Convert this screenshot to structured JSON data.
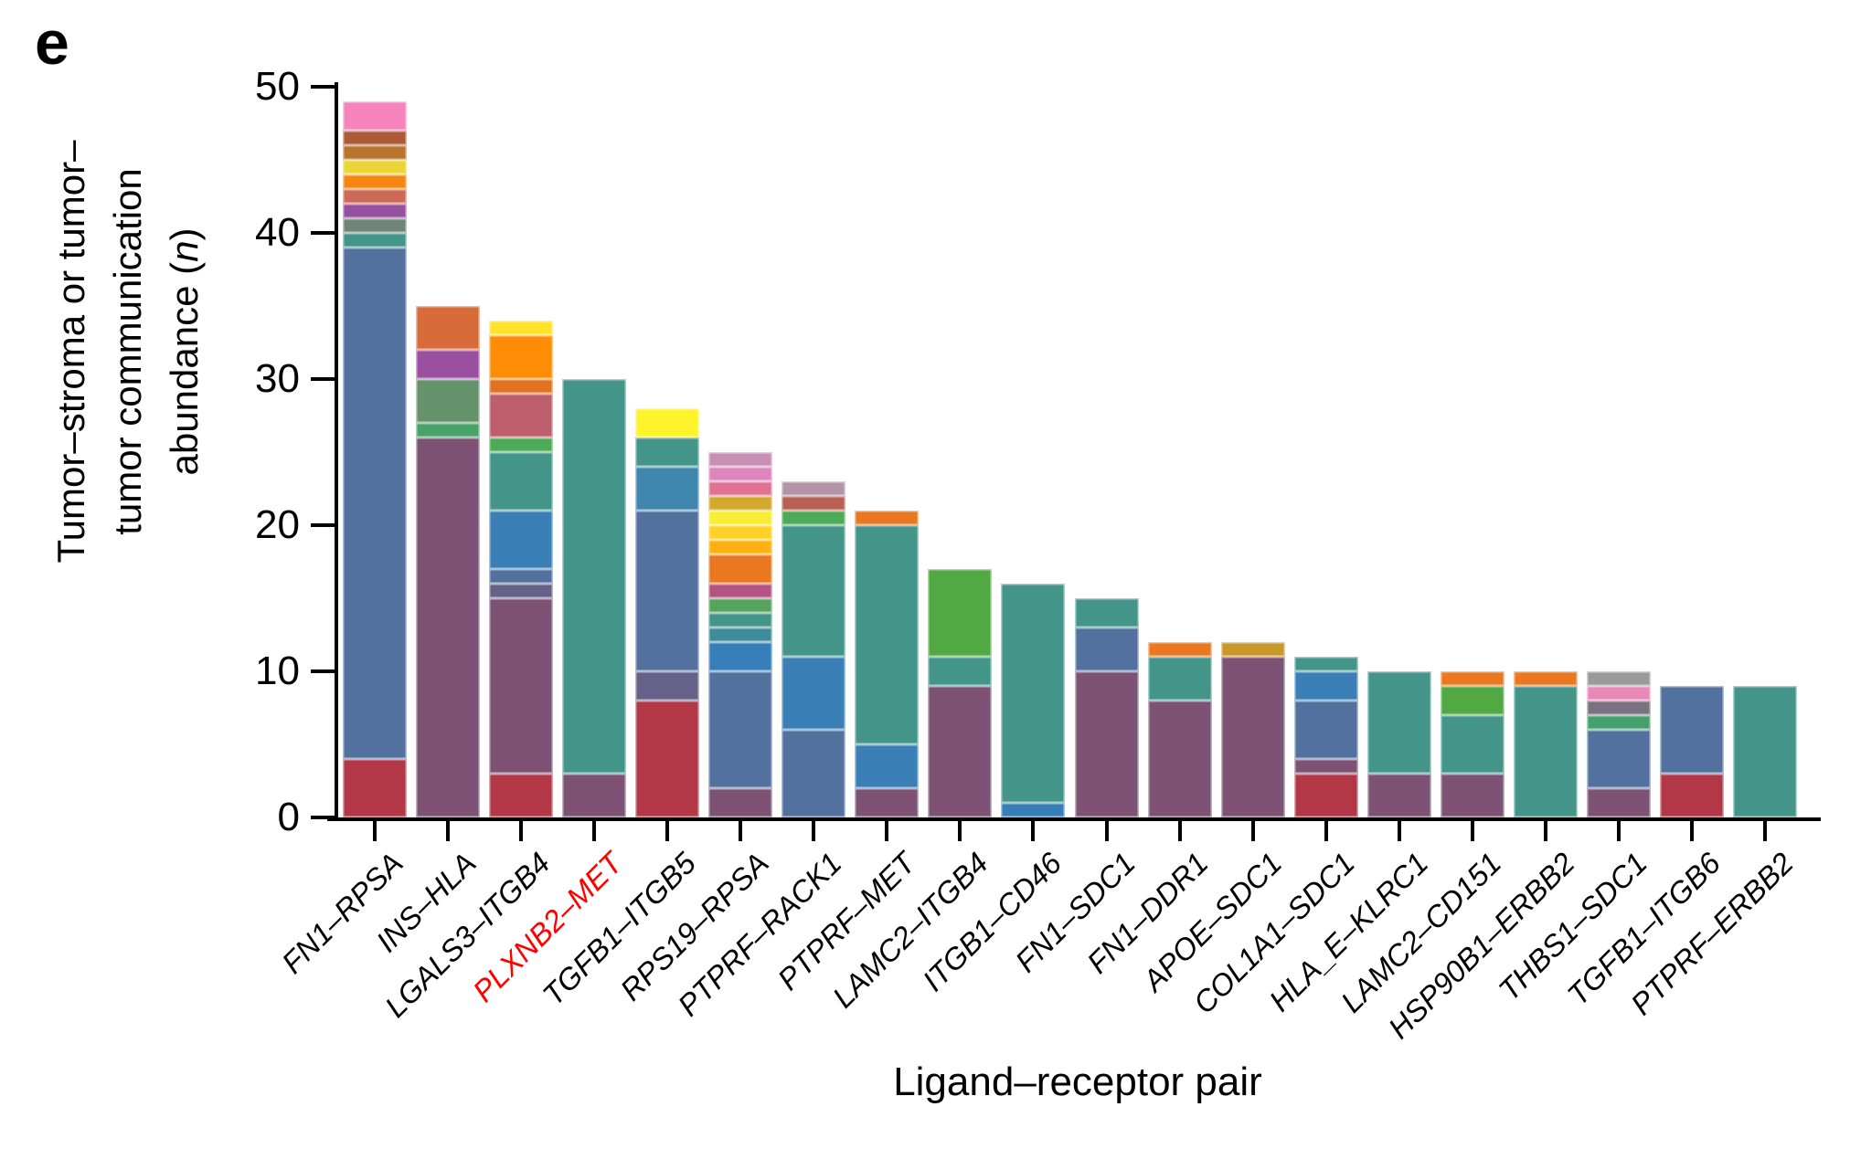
{
  "panel": {
    "label": "e"
  },
  "y_axis": {
    "title_line1": "Tumor–stroma or tumor–",
    "title_line2": "tumor communication",
    "title_line3_prefix": "abundance (",
    "title_line3_n": "n",
    "title_line3_suffix": ")"
  },
  "x_axis": {
    "title": "Ligand–receptor pair"
  },
  "chart_data": {
    "type": "bar",
    "stacked": true,
    "xlabel": "Ligand–receptor pair",
    "ylabel": "Tumor–stroma or tumor–tumor communication abundance (n)",
    "ylim": [
      0,
      50
    ],
    "yticks": [
      0,
      10,
      20,
      30,
      40,
      50
    ],
    "grid": false,
    "legend": "none",
    "highlight_label_color": "#ff0000",
    "categories": [
      "FN1–RPSA",
      "INS–HLA",
      "LGALS3–ITGB4",
      "PLXNB2–MET",
      "TGFB1–ITGB5",
      "RPS19–RPSA",
      "PTPRF–RACK1",
      "PTPRF–MET",
      "LAMC2–ITGB4",
      "ITGB1–CD46",
      "FN1–SDC1",
      "FN1–DDR1",
      "APOE–SDC1",
      "COL1A1–SDC1",
      "HLA_E–KLRC1",
      "LAMC2–CD151",
      "HSP90B1–ERBB2",
      "THBS1–SDC1",
      "TGFB1–ITGB6",
      "PTPRF–ERBB2"
    ],
    "totals": [
      49,
      35,
      34,
      30,
      28,
      25,
      23,
      21,
      17,
      16,
      15,
      12,
      12,
      11,
      10,
      10,
      10,
      10,
      9,
      9
    ],
    "bars": [
      {
        "label": "FN1–RPSA",
        "highlight": false,
        "segments": [
          {
            "value": 4,
            "color": "#B23747"
          },
          {
            "value": 35,
            "color": "#53719E"
          },
          {
            "value": 1,
            "color": "#439589"
          },
          {
            "value": 1,
            "color": "#6E8677"
          },
          {
            "value": 1,
            "color": "#95519F"
          },
          {
            "value": 1,
            "color": "#CC6A55"
          },
          {
            "value": 1,
            "color": "#F68613"
          },
          {
            "value": 1,
            "color": "#EAD637"
          },
          {
            "value": 1,
            "color": "#B8742C"
          },
          {
            "value": 1,
            "color": "#AC5B38"
          },
          {
            "value": 2,
            "color": "#F584BD"
          }
        ]
      },
      {
        "label": "INS–HLA",
        "highlight": false,
        "segments": [
          {
            "value": 26,
            "color": "#7D5274"
          },
          {
            "value": 1,
            "color": "#47A168"
          },
          {
            "value": 3,
            "color": "#65926B"
          },
          {
            "value": 2,
            "color": "#9A4FA0"
          },
          {
            "value": 3,
            "color": "#D76B3A"
          }
        ]
      },
      {
        "label": "LGALS3–ITGB4",
        "highlight": false,
        "segments": [
          {
            "value": 3,
            "color": "#B23747"
          },
          {
            "value": 12,
            "color": "#7D5274"
          },
          {
            "value": 1,
            "color": "#666189"
          },
          {
            "value": 1,
            "color": "#53719E"
          },
          {
            "value": 4,
            "color": "#3A7FB5"
          },
          {
            "value": 4,
            "color": "#439589"
          },
          {
            "value": 1,
            "color": "#4CAB55"
          },
          {
            "value": 3,
            "color": "#BC5E6C"
          },
          {
            "value": 1,
            "color": "#E2721F"
          },
          {
            "value": 3,
            "color": "#FF8C05"
          },
          {
            "value": 1,
            "color": "#FFE32B"
          }
        ]
      },
      {
        "label": "PLXNB2–MET",
        "highlight": true,
        "segments": [
          {
            "value": 3,
            "color": "#7D5274"
          },
          {
            "value": 27,
            "color": "#439589"
          }
        ]
      },
      {
        "label": "TGFB1–ITGB5",
        "highlight": false,
        "segments": [
          {
            "value": 8,
            "color": "#B23747"
          },
          {
            "value": 2,
            "color": "#666189"
          },
          {
            "value": 11,
            "color": "#53719E"
          },
          {
            "value": 3,
            "color": "#3E86AD"
          },
          {
            "value": 2,
            "color": "#439589"
          },
          {
            "value": 2,
            "color": "#FFF32B"
          }
        ]
      },
      {
        "label": "RPS19–RPSA",
        "highlight": false,
        "segments": [
          {
            "value": 2,
            "color": "#7D5274"
          },
          {
            "value": 8,
            "color": "#53719E"
          },
          {
            "value": 2,
            "color": "#377FB8"
          },
          {
            "value": 1,
            "color": "#3E8C99"
          },
          {
            "value": 1,
            "color": "#439589"
          },
          {
            "value": 1,
            "color": "#55A35C"
          },
          {
            "value": 1,
            "color": "#B25381"
          },
          {
            "value": 2,
            "color": "#E97820"
          },
          {
            "value": 1,
            "color": "#FFB114"
          },
          {
            "value": 1,
            "color": "#FFD026"
          },
          {
            "value": 1,
            "color": "#F7EE33"
          },
          {
            "value": 1,
            "color": "#D2A92C"
          },
          {
            "value": 1,
            "color": "#DF7293"
          },
          {
            "value": 1,
            "color": "#DE85BC"
          },
          {
            "value": 1,
            "color": "#C98FB5"
          }
        ]
      },
      {
        "label": "PTPRF–RACK1",
        "highlight": false,
        "segments": [
          {
            "value": 6,
            "color": "#53719E"
          },
          {
            "value": 5,
            "color": "#3A7FB5"
          },
          {
            "value": 9,
            "color": "#439589"
          },
          {
            "value": 1,
            "color": "#4CAB55"
          },
          {
            "value": 1,
            "color": "#B96052"
          },
          {
            "value": 1,
            "color": "#B295A8"
          }
        ]
      },
      {
        "label": "PTPRF–MET",
        "highlight": false,
        "segments": [
          {
            "value": 2,
            "color": "#7D5274"
          },
          {
            "value": 3,
            "color": "#3A7FB5"
          },
          {
            "value": 15,
            "color": "#439589"
          },
          {
            "value": 1,
            "color": "#E97820"
          }
        ]
      },
      {
        "label": "LAMC2–ITGB4",
        "highlight": false,
        "segments": [
          {
            "value": 9,
            "color": "#7D5274"
          },
          {
            "value": 2,
            "color": "#439589"
          },
          {
            "value": 6,
            "color": "#52A943"
          }
        ]
      },
      {
        "label": "ITGB1–CD46",
        "highlight": false,
        "segments": [
          {
            "value": 1,
            "color": "#377FB8"
          },
          {
            "value": 15,
            "color": "#439589"
          }
        ]
      },
      {
        "label": "FN1–SDC1",
        "highlight": false,
        "segments": [
          {
            "value": 10,
            "color": "#7D5274"
          },
          {
            "value": 3,
            "color": "#53719E"
          },
          {
            "value": 2,
            "color": "#439589"
          }
        ]
      },
      {
        "label": "FN1–DDR1",
        "highlight": false,
        "segments": [
          {
            "value": 8,
            "color": "#7D5274"
          },
          {
            "value": 3,
            "color": "#439589"
          },
          {
            "value": 1,
            "color": "#E97820"
          }
        ]
      },
      {
        "label": "APOE–SDC1",
        "highlight": false,
        "segments": [
          {
            "value": 11,
            "color": "#7D5274"
          },
          {
            "value": 1,
            "color": "#C9982B"
          }
        ]
      },
      {
        "label": "COL1A1–SDC1",
        "highlight": false,
        "segments": [
          {
            "value": 3,
            "color": "#B23747"
          },
          {
            "value": 1,
            "color": "#7D5274"
          },
          {
            "value": 4,
            "color": "#53719E"
          },
          {
            "value": 2,
            "color": "#3A7FB5"
          },
          {
            "value": 1,
            "color": "#439589"
          }
        ]
      },
      {
        "label": "HLA_E–KLRC1",
        "highlight": false,
        "segments": [
          {
            "value": 3,
            "color": "#7D5274"
          },
          {
            "value": 7,
            "color": "#439589"
          }
        ]
      },
      {
        "label": "LAMC2–CD151",
        "highlight": false,
        "segments": [
          {
            "value": 3,
            "color": "#7D5274"
          },
          {
            "value": 4,
            "color": "#439589"
          },
          {
            "value": 2,
            "color": "#52A943"
          },
          {
            "value": 1,
            "color": "#E97820"
          }
        ]
      },
      {
        "label": "HSP90B1–ERBB2",
        "highlight": false,
        "segments": [
          {
            "value": 9,
            "color": "#439589"
          },
          {
            "value": 1,
            "color": "#E97820"
          }
        ]
      },
      {
        "label": "THBS1–SDC1",
        "highlight": false,
        "segments": [
          {
            "value": 2,
            "color": "#7D5274"
          },
          {
            "value": 4,
            "color": "#53719E"
          },
          {
            "value": 1,
            "color": "#44A06D"
          },
          {
            "value": 1,
            "color": "#7A7280"
          },
          {
            "value": 1,
            "color": "#E987B7"
          },
          {
            "value": 1,
            "color": "#9A9A9A"
          }
        ]
      },
      {
        "label": "TGFB1–ITGB6",
        "highlight": false,
        "segments": [
          {
            "value": 3,
            "color": "#B23747"
          },
          {
            "value": 6,
            "color": "#53719E"
          }
        ]
      },
      {
        "label": "PTPRF–ERBB2",
        "highlight": false,
        "segments": [
          {
            "value": 9,
            "color": "#439589"
          }
        ]
      }
    ]
  }
}
